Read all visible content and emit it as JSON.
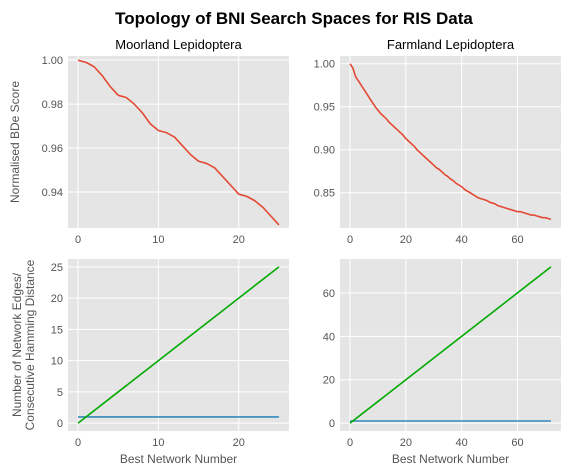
{
  "figure": {
    "title": "Topology of BNI Search Spaces for RIS Data",
    "colors": {
      "background": "#E5E5E5",
      "grid": "#FFFFFF",
      "red": "#E24A33",
      "blue": "#348ABD",
      "green": "#00AA00"
    }
  },
  "chart_data": [
    {
      "type": "line",
      "title": "Moorland Lepidoptera",
      "xlabel": "",
      "ylabel": "Normalised BDe Score",
      "xlim": [
        -1.25,
        26.25
      ],
      "ylim": [
        0.9236,
        1.0019
      ],
      "xticks": [
        0,
        10,
        20
      ],
      "xtick_labels": [
        "0",
        "10",
        "20"
      ],
      "yticks": [
        0.94,
        0.96,
        0.98,
        1.0
      ],
      "ytick_labels": [
        "0.94",
        "0.96",
        "0.98",
        "1.00"
      ],
      "grid": true,
      "series": [
        {
          "color": "#E24A33",
          "x": [
            0,
            1,
            2,
            3,
            4,
            5,
            6,
            7,
            8,
            9,
            10,
            11,
            12,
            13,
            14,
            15,
            16,
            17,
            18,
            19,
            20,
            21,
            22,
            23,
            24,
            25
          ],
          "y": [
            1.0,
            0.999,
            0.997,
            0.993,
            0.988,
            0.984,
            0.983,
            0.98,
            0.976,
            0.971,
            0.968,
            0.967,
            0.965,
            0.961,
            0.957,
            0.954,
            0.953,
            0.951,
            0.947,
            0.943,
            0.939,
            0.938,
            0.936,
            0.933,
            0.929,
            0.925
          ]
        }
      ]
    },
    {
      "type": "line",
      "title": "Farmland Lepidoptera",
      "xlabel": "",
      "ylabel": "",
      "xlim": [
        -3.6,
        75.6
      ],
      "ylim": [
        0.809,
        1.009
      ],
      "xticks": [
        0,
        20,
        40,
        60
      ],
      "xtick_labels": [
        "0",
        "20",
        "40",
        "60"
      ],
      "yticks": [
        0.85,
        0.9,
        0.95,
        1.0
      ],
      "ytick_labels": [
        "0.85",
        "0.90",
        "0.95",
        "1.00"
      ],
      "grid": true,
      "series": [
        {
          "color": "#E24A33",
          "x": [
            0,
            1,
            2,
            3,
            4,
            5,
            6,
            7,
            8,
            9,
            10,
            11,
            12,
            13,
            14,
            15,
            16,
            17,
            18,
            19,
            20,
            21,
            22,
            23,
            24,
            25,
            26,
            27,
            28,
            29,
            30,
            31,
            32,
            33,
            34,
            35,
            36,
            37,
            38,
            39,
            40,
            41,
            42,
            43,
            44,
            45,
            46,
            47,
            48,
            49,
            50,
            51,
            52,
            53,
            54,
            55,
            56,
            57,
            58,
            59,
            60,
            61,
            62,
            63,
            64,
            65,
            66,
            67,
            68,
            69,
            70,
            71,
            72
          ],
          "y": [
            1.0,
            0.995,
            0.985,
            0.98,
            0.975,
            0.97,
            0.965,
            0.96,
            0.955,
            0.95,
            0.946,
            0.942,
            0.939,
            0.936,
            0.932,
            0.929,
            0.926,
            0.923,
            0.92,
            0.917,
            0.913,
            0.91,
            0.907,
            0.904,
            0.9,
            0.897,
            0.894,
            0.891,
            0.888,
            0.885,
            0.882,
            0.879,
            0.877,
            0.874,
            0.871,
            0.869,
            0.866,
            0.864,
            0.861,
            0.859,
            0.857,
            0.854,
            0.852,
            0.85,
            0.848,
            0.846,
            0.844,
            0.843,
            0.842,
            0.841,
            0.839,
            0.838,
            0.837,
            0.835,
            0.834,
            0.833,
            0.832,
            0.831,
            0.83,
            0.829,
            0.828,
            0.828,
            0.827,
            0.826,
            0.825,
            0.824,
            0.824,
            0.823,
            0.822,
            0.821,
            0.821,
            0.82,
            0.819
          ]
        }
      ]
    },
    {
      "type": "line",
      "title": "",
      "xlabel": "Best Network Number",
      "ylabel": "Number of Network Edges/\nConsecutive Hamming Distance",
      "xlim": [
        -1.25,
        26.25
      ],
      "ylim": [
        -1.25,
        26.25
      ],
      "xticks": [
        0,
        10,
        20
      ],
      "xtick_labels": [
        "0",
        "10",
        "20"
      ],
      "yticks": [
        0,
        5,
        10,
        15,
        20,
        25
      ],
      "ytick_labels": [
        "0",
        "5",
        "10",
        "15",
        "20",
        "25"
      ],
      "grid": true,
      "series": [
        {
          "color": "#348ABD",
          "x": [
            0,
            25
          ],
          "y": [
            1,
            1
          ]
        },
        {
          "color": "#00AA00",
          "x": [
            0,
            25
          ],
          "y": [
            0,
            25
          ]
        }
      ]
    },
    {
      "type": "line",
      "title": "",
      "xlabel": "Best Network Number",
      "ylabel": "",
      "xlim": [
        -3.6,
        75.6
      ],
      "ylim": [
        -3.6,
        75.6
      ],
      "xticks": [
        0,
        20,
        40,
        60
      ],
      "xtick_labels": [
        "0",
        "20",
        "40",
        "60"
      ],
      "yticks": [
        0,
        20,
        40,
        60
      ],
      "ytick_labels": [
        "0",
        "20",
        "40",
        "60"
      ],
      "grid": true,
      "series": [
        {
          "color": "#348ABD",
          "x": [
            0,
            72
          ],
          "y": [
            1,
            1
          ]
        },
        {
          "color": "#00AA00",
          "x": [
            0,
            72
          ],
          "y": [
            0,
            72
          ]
        }
      ]
    }
  ]
}
